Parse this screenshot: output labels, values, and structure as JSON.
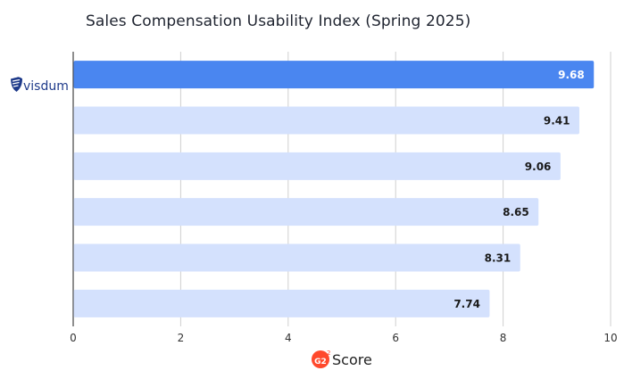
{
  "chart_data": {
    "type": "bar",
    "orientation": "horizontal",
    "title": "Sales Compensation Usability Index (Spring 2025)",
    "categories": [
      "visdum",
      "",
      "",
      "",
      "",
      ""
    ],
    "values": [
      9.68,
      9.41,
      9.06,
      8.65,
      8.31,
      7.74
    ],
    "value_labels": [
      "9.68",
      "9.41",
      "9.06",
      "8.65",
      "8.31",
      "7.74"
    ],
    "highlight_index": 0,
    "xlim": [
      0,
      10
    ],
    "xticks": [
      0,
      2,
      4,
      6,
      8,
      10
    ],
    "xtick_labels": [
      "0",
      "2",
      "4",
      "6",
      "8",
      "10"
    ],
    "xlabel_logo": "G2",
    "xlabel_logo_superscript": "2",
    "xlabel": "Score",
    "grid": true,
    "colors": {
      "highlight_bar": "#4a86f0",
      "bar": "#d4e1fd",
      "highlight_label": "#ffffff",
      "label": "#1a1a1a",
      "grid": "#cfcfcf",
      "brand": "#1e3a8a",
      "g2": "#ff492c"
    }
  }
}
